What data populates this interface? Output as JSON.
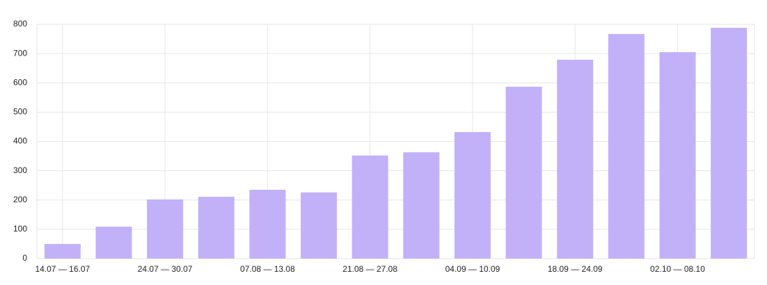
{
  "chart_data": {
    "type": "bar",
    "categories": [
      "14.07 — 16.07",
      null,
      "24.07 — 30.07",
      null,
      "07.08 — 13.08",
      null,
      "21.08 — 27.08",
      null,
      "04.09 — 10.09",
      null,
      "18.09 — 24.09",
      null,
      "02.10 — 08.10",
      null
    ],
    "values": [
      50,
      109,
      202,
      211,
      235,
      226,
      352,
      363,
      432,
      587,
      679,
      767,
      705,
      788
    ],
    "color": "#c2b1f9",
    "ylim": [
      0,
      800
    ],
    "yticks": [
      0,
      100,
      200,
      300,
      400,
      500,
      600,
      700,
      800
    ],
    "grid": true
  }
}
